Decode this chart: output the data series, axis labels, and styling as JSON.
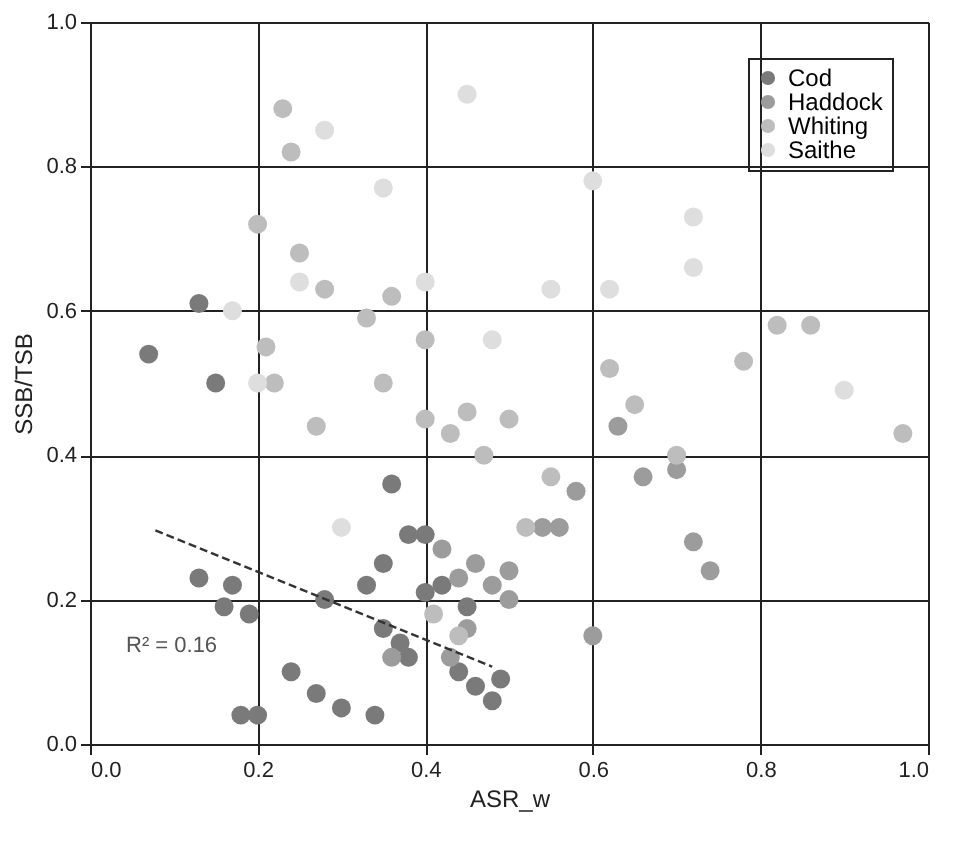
{
  "chart_data": {
    "type": "scatter",
    "xlabel": "ASR_w",
    "ylabel": "SSB/TSB",
    "xlim": [
      0,
      1
    ],
    "ylim": [
      0,
      1
    ],
    "xticks": [
      {
        "value": 0,
        "label": "0.0"
      },
      0.2,
      0.4,
      0.6,
      0.8,
      {
        "value": 1,
        "label": "1.0"
      }
    ],
    "yticks": [
      {
        "value": 0,
        "label": "0.0"
      },
      0.2,
      0.4,
      0.6,
      0.8,
      {
        "value": 1,
        "label": "1.0"
      }
    ],
    "grid": true,
    "legend": "top right",
    "marker": "circle",
    "series": [
      {
        "name": "Cod",
        "color": "#7a7a7a",
        "x": [
          0.07,
          0.13,
          0.15,
          0.13,
          0.17,
          0.16,
          0.19,
          0.18,
          0.2,
          0.24,
          0.27,
          0.3,
          0.34,
          0.28,
          0.33,
          0.35,
          0.35,
          0.36,
          0.38,
          0.38,
          0.4,
          0.4,
          0.37,
          0.42,
          0.45,
          0.46,
          0.48,
          0.44,
          0.49
        ],
        "values": [
          0.54,
          0.61,
          0.5,
          0.23,
          0.22,
          0.19,
          0.18,
          0.04,
          0.04,
          0.1,
          0.07,
          0.05,
          0.04,
          0.2,
          0.22,
          0.25,
          0.16,
          0.36,
          0.29,
          0.12,
          0.29,
          0.21,
          0.14,
          0.22,
          0.19,
          0.08,
          0.06,
          0.1,
          0.09
        ]
      },
      {
        "name": "Haddock",
        "color": "#9c9c9c",
        "x": [
          0.36,
          0.44,
          0.46,
          0.48,
          0.5,
          0.5,
          0.54,
          0.56,
          0.58,
          0.63,
          0.66,
          0.7,
          0.72,
          0.74,
          0.6,
          0.42,
          0.45,
          0.43
        ],
        "values": [
          0.12,
          0.23,
          0.25,
          0.22,
          0.2,
          0.24,
          0.3,
          0.3,
          0.35,
          0.44,
          0.37,
          0.38,
          0.28,
          0.24,
          0.15,
          0.27,
          0.16,
          0.12
        ]
      },
      {
        "name": "Whiting",
        "color": "#bdbdbd",
        "x": [
          0.2,
          0.23,
          0.24,
          0.25,
          0.28,
          0.33,
          0.36,
          0.4,
          0.21,
          0.22,
          0.27,
          0.35,
          0.4,
          0.43,
          0.45,
          0.47,
          0.5,
          0.52,
          0.55,
          0.62,
          0.65,
          0.7,
          0.78,
          0.82,
          0.86,
          0.97,
          0.41,
          0.44
        ],
        "values": [
          0.72,
          0.88,
          0.82,
          0.68,
          0.63,
          0.59,
          0.62,
          0.56,
          0.55,
          0.5,
          0.44,
          0.5,
          0.45,
          0.43,
          0.46,
          0.4,
          0.45,
          0.3,
          0.37,
          0.52,
          0.47,
          0.4,
          0.53,
          0.58,
          0.58,
          0.43,
          0.18,
          0.15
        ]
      },
      {
        "name": "Saithe",
        "color": "#dedede",
        "x": [
          0.25,
          0.28,
          0.35,
          0.45,
          0.6,
          0.72,
          0.55,
          0.48,
          0.72,
          0.9,
          0.62,
          0.3,
          0.2,
          0.17,
          0.4
        ],
        "values": [
          0.64,
          0.85,
          0.77,
          0.9,
          0.78,
          0.73,
          0.63,
          0.56,
          0.66,
          0.49,
          0.63,
          0.3,
          0.5,
          0.6,
          0.64
        ]
      },
      {
        "type": "line",
        "color": "#333333",
        "marker": "none",
        "line_style": "dashed",
        "x": [
          0.078,
          0.48
        ],
        "values": [
          0.296,
          0.107
        ]
      }
    ],
    "annotations": [
      "R² = 0.16"
    ]
  }
}
